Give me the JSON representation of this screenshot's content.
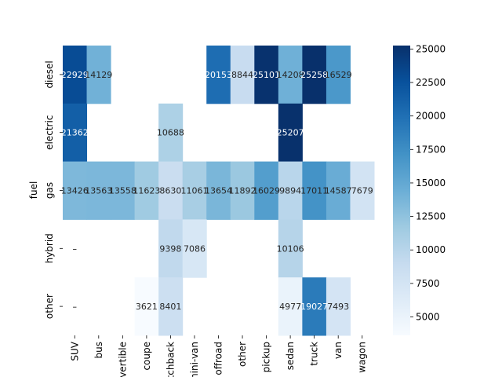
{
  "chart_data": {
    "type": "heatmap",
    "title": "",
    "xlabel": "",
    "ylabel": "fuel",
    "x_categories": [
      "SUV",
      "bus",
      "convertible",
      "coupe",
      "hatchback",
      "mini-van",
      "offroad",
      "other",
      "pickup",
      "sedan",
      "truck",
      "van",
      "wagon"
    ],
    "y_categories": [
      "diesel",
      "electric",
      "gas",
      "hybrid",
      "other"
    ],
    "values": [
      [
        22929,
        14129,
        null,
        null,
        null,
        null,
        20153,
        8844,
        25101,
        14208,
        25258,
        16529,
        null
      ],
      [
        21362,
        null,
        null,
        null,
        10688,
        null,
        null,
        null,
        null,
        25207,
        null,
        null,
        null
      ],
      [
        13426,
        13563,
        13558,
        11623,
        8630,
        11061,
        13654,
        11892,
        16029,
        9894,
        17011,
        14587,
        7679
      ],
      [
        null,
        null,
        null,
        null,
        9398,
        7086,
        null,
        null,
        null,
        10106,
        null,
        null,
        null
      ],
      [
        null,
        null,
        null,
        3621,
        8401,
        null,
        null,
        null,
        null,
        4977,
        19027,
        7493,
        null
      ]
    ],
    "null_label": "–",
    "colormap": "Blues",
    "colorbar": {
      "min": 3621,
      "max": 25258,
      "ticks": [
        5000,
        7500,
        10000,
        12500,
        15000,
        17500,
        20000,
        22500,
        25000
      ]
    },
    "colors": {
      "low": "#f7fbff",
      "high": "#08306b"
    }
  }
}
